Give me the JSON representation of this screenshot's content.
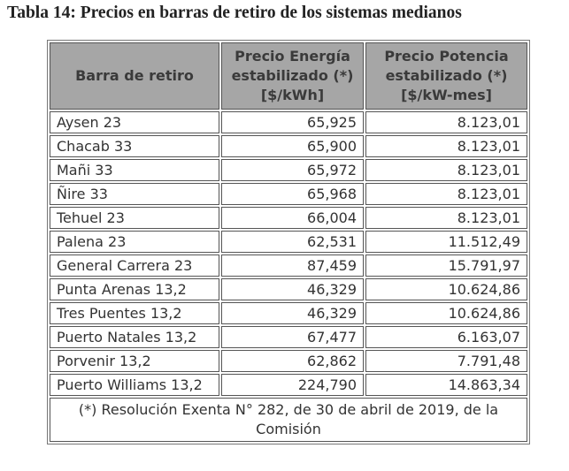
{
  "title": "Tabla 14: Precios en barras de retiro de los sistemas medianos",
  "table": {
    "headers": [
      [
        "Barra de retiro"
      ],
      [
        "Precio Energía",
        "estabilizado (*)",
        "[$/kWh]"
      ],
      [
        "Precio Potencia",
        "estabilizado (*)",
        "[$/kW-mes]"
      ]
    ],
    "rows": [
      [
        "Aysen 23",
        "65,925",
        "8.123,01"
      ],
      [
        "Chacab 33",
        "65,900",
        "8.123,01"
      ],
      [
        "Mañi 33",
        "65,972",
        "8.123,01"
      ],
      [
        "Ñire 33",
        "65,968",
        "8.123,01"
      ],
      [
        "Tehuel 23",
        "66,004",
        "8.123,01"
      ],
      [
        "Palena 23",
        "62,531",
        "11.512,49"
      ],
      [
        "General Carrera 23",
        "87,459",
        "15.791,97"
      ],
      [
        "Punta Arenas 13,2",
        "46,329",
        "10.624,86"
      ],
      [
        "Tres Puentes 13,2",
        "46,329",
        "10.624,86"
      ],
      [
        "Puerto Natales 13,2",
        "67,477",
        "6.163,07"
      ],
      [
        "Porvenir 13,2",
        "62,862",
        "7.791,48"
      ],
      [
        "Puerto Williams 13,2",
        "224,790",
        "14.863,34"
      ]
    ],
    "footnote": "(*) Resolución Exenta N° 282, de 30 de abril de 2019, de la Comisión"
  }
}
